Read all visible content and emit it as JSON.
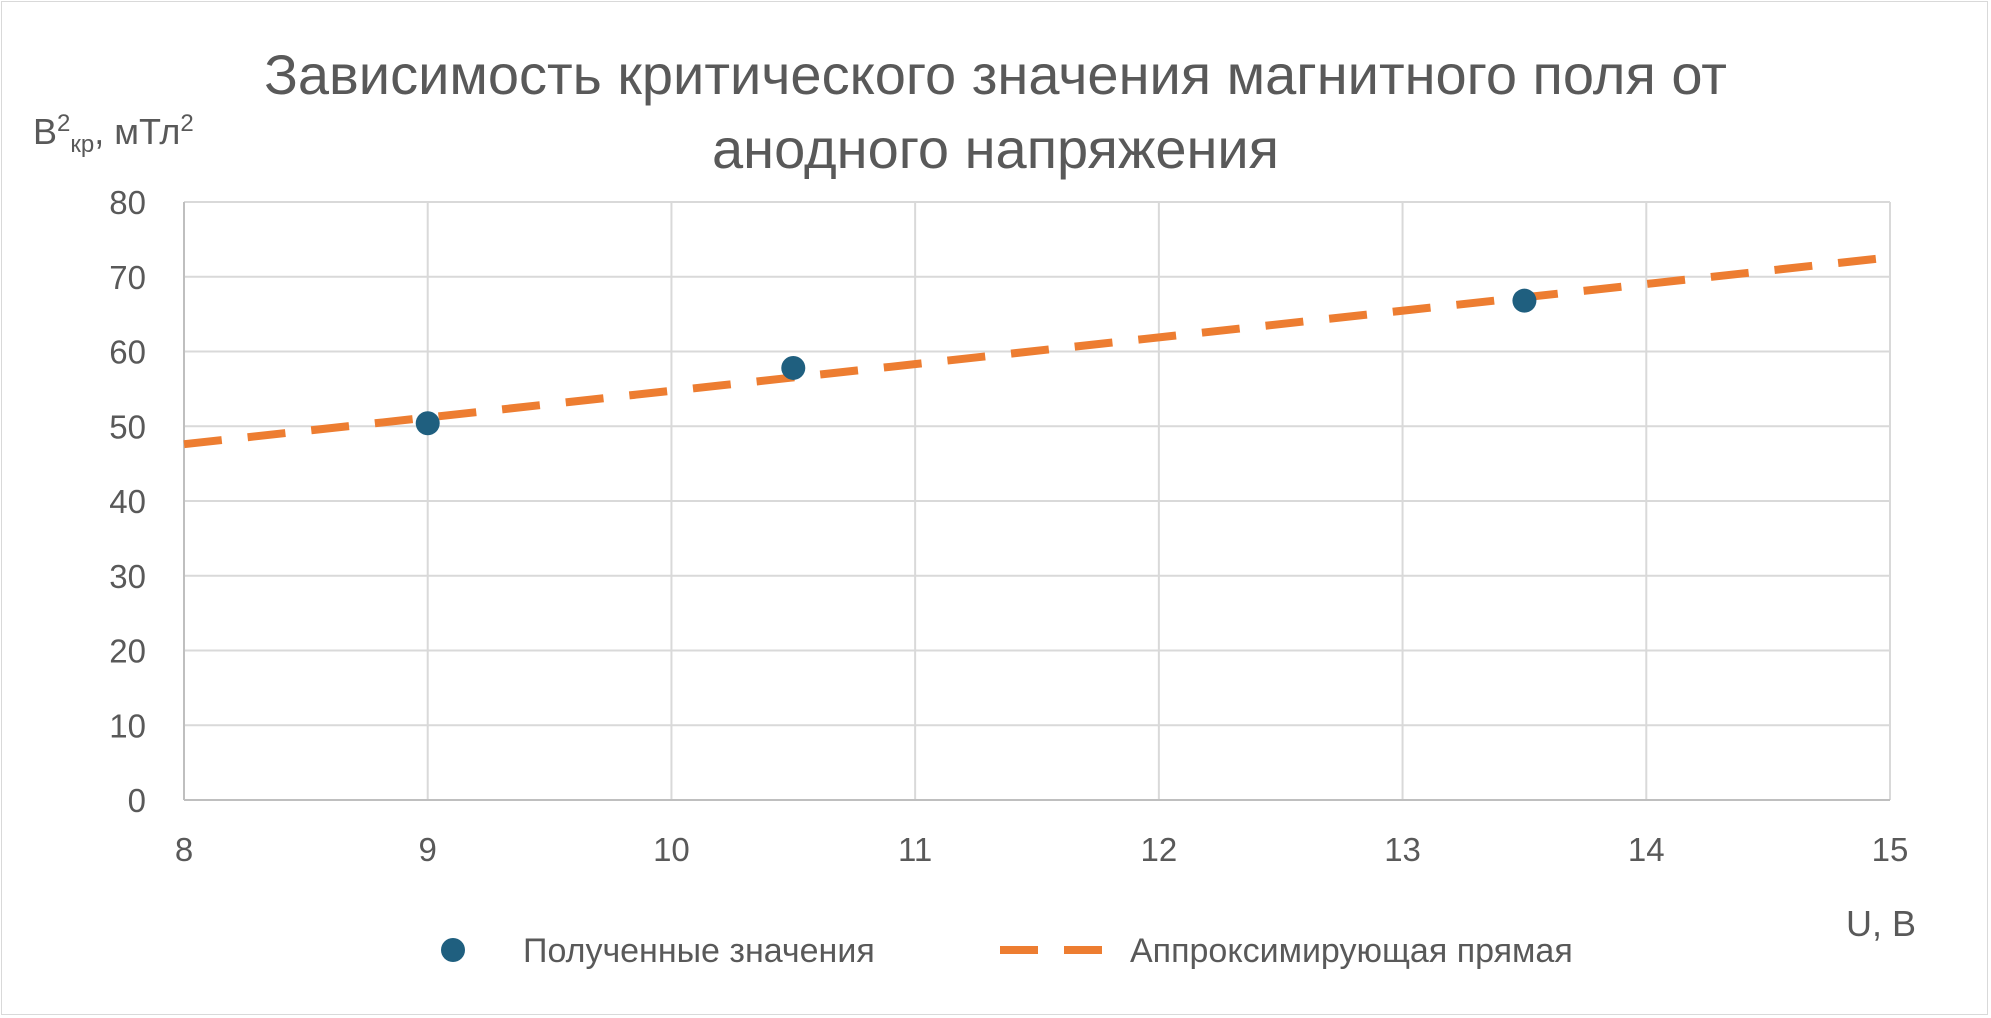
{
  "chart_data": {
    "type": "scatter",
    "title_lines": [
      "Зависимость критического значения магнитного поля от",
      "анодного напряжения"
    ],
    "ylabel": {
      "base": "B",
      "sup1": "2",
      "sub": "кр",
      "rest": ", мТл",
      "sup2": "2"
    },
    "xlabel": "U, В",
    "xlim": [
      8,
      15
    ],
    "ylim": [
      0,
      80
    ],
    "xticks": [
      8,
      9,
      10,
      11,
      12,
      13,
      14,
      15
    ],
    "yticks": [
      0,
      10,
      20,
      30,
      40,
      50,
      60,
      70,
      80
    ],
    "grid": true,
    "legend_position": "bottom",
    "series": [
      {
        "name": "Полученные значения",
        "kind": "markers",
        "color": "#1f5f7f",
        "points": [
          [
            9,
            50.4
          ],
          [
            10.5,
            57.8
          ],
          [
            13.5,
            66.8
          ]
        ]
      },
      {
        "name": "Аппроксимирующая прямая",
        "kind": "dashed-line",
        "color": "#ed7d31",
        "points": [
          [
            8,
            47.6
          ],
          [
            15,
            72.6
          ]
        ]
      }
    ]
  }
}
